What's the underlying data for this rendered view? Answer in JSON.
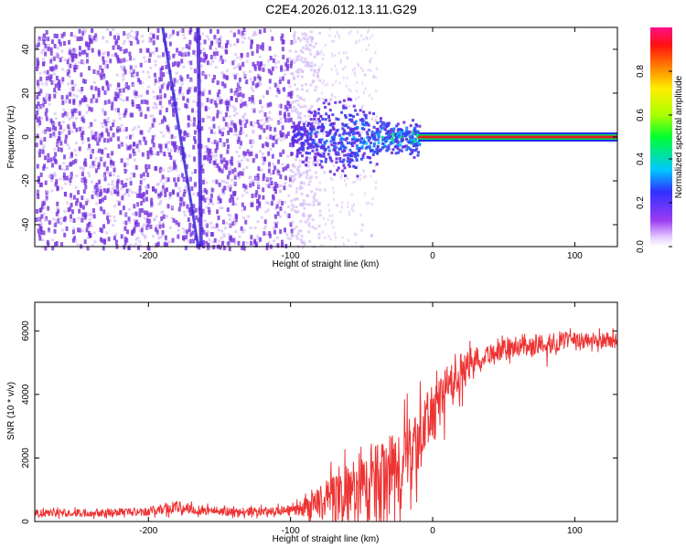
{
  "title": "C2E4.2026.012.13.11.G29",
  "colors": {
    "snr_line": "#ee3333",
    "scatter": "#7733dd",
    "scatter_light": "#cfb4f3",
    "carrier": "#dd2222"
  },
  "chart_data": [
    {
      "type": "heatmap",
      "title": "C2E4.2026.012.13.11.G29",
      "xlabel": "Height of straight line (km)",
      "ylabel": "Frequency (Hz)",
      "xlim": [
        -280,
        130
      ],
      "ylim": [
        -50,
        50
      ],
      "xticks": [
        -200,
        -100,
        0,
        100
      ],
      "xtick_labels": [
        "-200",
        "-100",
        "0",
        "100"
      ],
      "yticks": [
        -40,
        -20,
        0,
        20,
        40
      ],
      "ytick_labels": [
        "-40",
        "-20",
        "0",
        "20",
        "40"
      ],
      "colorbar": {
        "label": "Normalized spectral amplitude",
        "range": [
          0,
          1
        ],
        "ticks": [
          0.0,
          0.2,
          0.4,
          0.6,
          0.8
        ],
        "tick_labels": [
          "0.0",
          "0.2",
          "0.4",
          "0.6",
          "0.8"
        ]
      },
      "features": {
        "carrier_frequency_hz": 0,
        "carrier_start_km": -10,
        "blob_range_km": [
          -100,
          -10
        ],
        "noise_dense_until_km": -100,
        "noise_sparse_until_km": -80,
        "streak1_km": [
          -190,
          -165
        ],
        "streak2_km": [
          -165,
          -163
        ]
      }
    },
    {
      "type": "line",
      "xlabel": "Height of straight line (km)",
      "ylabel": "SNR (10 * v/v)",
      "xlim": [
        -280,
        130
      ],
      "ylim": [
        0,
        6900
      ],
      "xticks": [
        -200,
        -100,
        0,
        100
      ],
      "xtick_labels": [
        "-200",
        "-100",
        "0",
        "100"
      ],
      "yticks": [
        0,
        2000,
        4000,
        6000
      ],
      "ytick_labels": [
        "0",
        "2000",
        "4000",
        "6000"
      ],
      "series": [
        {
          "name": "SNR",
          "x": [
            -280,
            -240,
            -200,
            -180,
            -160,
            -140,
            -120,
            -100,
            -90,
            -80,
            -70,
            -60,
            -50,
            -40,
            -30,
            -20,
            -10,
            0,
            10,
            20,
            30,
            40,
            50,
            60,
            70,
            80,
            90,
            100,
            110,
            120,
            130
          ],
          "y": [
            250,
            280,
            320,
            450,
            350,
            300,
            320,
            350,
            450,
            600,
            750,
            900,
            1000,
            1200,
            1500,
            1900,
            2600,
            3400,
            4200,
            4800,
            5100,
            5300,
            5400,
            5500,
            5550,
            5600,
            5650,
            5650,
            5700,
            5700,
            5700
          ],
          "noise_amplitude": [
            120,
            120,
            130,
            200,
            150,
            120,
            130,
            150,
            300,
            500,
            800,
            900,
            1000,
            1200,
            1300,
            1300,
            1100,
            900,
            700,
            500,
            400,
            350,
            300,
            300,
            300,
            300,
            300,
            300,
            250,
            250,
            250
          ]
        }
      ]
    }
  ]
}
